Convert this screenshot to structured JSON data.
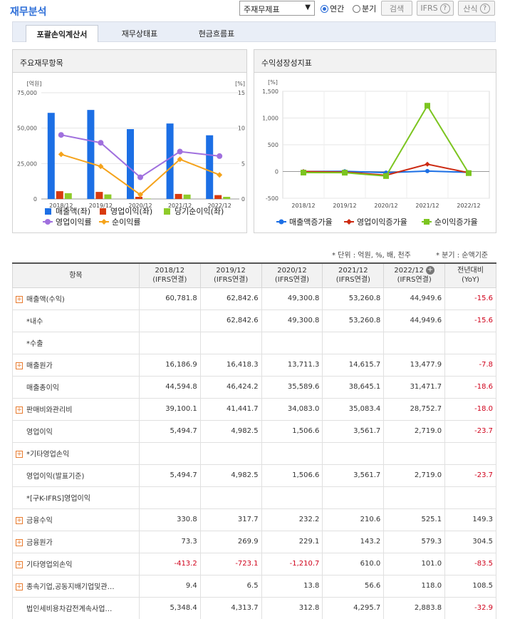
{
  "header": {
    "title": "재무분석",
    "select_value": "주재무제표",
    "radio_annual": "연간",
    "radio_quarter": "분기",
    "search_label": "검색",
    "ifrs_label": "IFRS",
    "formula_label": "산식"
  },
  "tabs": [
    "포괄손익계산서",
    "재무상태표",
    "현금흐름표"
  ],
  "panel_left_title": "주요재무항목",
  "panel_right_title": "수익성장성지표",
  "chart_data": [
    {
      "type": "bar",
      "categories": [
        "2018/12",
        "2019/12",
        "2020/12",
        "2021/12",
        "2022/12"
      ],
      "y_left_unit": "[억원]",
      "y_right_unit": "[%]",
      "y_left_ticks": [
        "75,000",
        "50,000",
        "25,000",
        "0"
      ],
      "y_right_ticks": [
        "15",
        "10",
        "5",
        "0"
      ],
      "ylim_left": [
        0,
        75000
      ],
      "ylim_right": [
        0,
        15
      ],
      "series": [
        {
          "name": "매출액(좌)",
          "kind": "bar",
          "axis": "left",
          "color": "#1c6fe5",
          "values": [
            60781.8,
            62842.6,
            49300.8,
            53260.8,
            44949.6
          ]
        },
        {
          "name": "영업이익(좌)",
          "kind": "bar",
          "axis": "left",
          "color": "#d83a0e",
          "values": [
            5494.7,
            4982.5,
            1506.6,
            3561.7,
            2719.0
          ]
        },
        {
          "name": "당기순이익(좌)",
          "kind": "bar",
          "axis": "left",
          "color": "#8ecb2a",
          "values": [
            4090,
            3200,
            300,
            3100,
            1500
          ]
        },
        {
          "name": "영업이익률",
          "kind": "line",
          "axis": "right",
          "color": "#a070de",
          "values": [
            9.04,
            7.93,
            3.06,
            6.69,
            6.05
          ]
        },
        {
          "name": "순이익률",
          "kind": "line",
          "axis": "right",
          "color": "#f5a31b",
          "values": [
            6.3,
            4.6,
            0.6,
            5.6,
            3.4
          ]
        }
      ]
    },
    {
      "type": "line",
      "categories": [
        "2018/12",
        "2019/12",
        "2020/12",
        "2021/12",
        "2022/12"
      ],
      "y_unit": "[%]",
      "y_ticks": [
        "1,500",
        "1,000",
        "500",
        "0",
        "-500"
      ],
      "ylim": [
        -500,
        1500
      ],
      "series": [
        {
          "name": "매출액증가율",
          "color": "#1c6fe5",
          "values": [
            0,
            3.4,
            -21.5,
            8.0,
            -15.6
          ]
        },
        {
          "name": "영업이익증가율",
          "color": "#cc2a12",
          "values": [
            0,
            -9.3,
            -69.8,
            136.4,
            -23.7
          ]
        },
        {
          "name": "순이익증가율",
          "color": "#7cc520",
          "values": [
            -20,
            -22,
            -85,
            1230,
            -30
          ]
        }
      ]
    }
  ],
  "notes": {
    "unit": "* 단위 : 억원, %, 배, 천주",
    "quarter": "* 분기 : 순액기준"
  },
  "table": {
    "headers": [
      {
        "line1": "항목",
        "line2": ""
      },
      {
        "line1": "2018/12",
        "line2": "(IFRS연결)"
      },
      {
        "line1": "2019/12",
        "line2": "(IFRS연결)"
      },
      {
        "line1": "2020/12",
        "line2": "(IFRS연결)"
      },
      {
        "line1": "2021/12",
        "line2": "(IFRS연결)"
      },
      {
        "line1": "2022/12",
        "line2": "(IFRS연결)"
      },
      {
        "line1": "전년대비",
        "line2": "(YoY)"
      }
    ],
    "rows": [
      {
        "label": "매출액(수익)",
        "expand": true,
        "cells": [
          "60,781.8",
          "62,842.6",
          "49,300.8",
          "53,260.8",
          "44,949.6",
          "-15.6"
        ]
      },
      {
        "label": "*내수",
        "expand": false,
        "cells": [
          "",
          "62,842.6",
          "49,300.8",
          "53,260.8",
          "44,949.6",
          "-15.6"
        ]
      },
      {
        "label": "*수출",
        "expand": false,
        "cells": [
          "",
          "",
          "",
          "",
          "",
          ""
        ]
      },
      {
        "label": "매출원가",
        "expand": true,
        "cells": [
          "16,186.9",
          "16,418.3",
          "13,711.3",
          "14,615.7",
          "13,477.9",
          "-7.8"
        ]
      },
      {
        "label": "매출총이익",
        "expand": false,
        "cells": [
          "44,594.8",
          "46,424.2",
          "35,589.6",
          "38,645.1",
          "31,471.7",
          "-18.6"
        ]
      },
      {
        "label": "판매비와관리비",
        "expand": true,
        "cells": [
          "39,100.1",
          "41,441.7",
          "34,083.0",
          "35,083.4",
          "28,752.7",
          "-18.0"
        ]
      },
      {
        "label": "영업이익",
        "expand": false,
        "cells": [
          "5,494.7",
          "4,982.5",
          "1,506.6",
          "3,561.7",
          "2,719.0",
          "-23.7"
        ]
      },
      {
        "label": "*기타영업손익",
        "expand": true,
        "cells": [
          "",
          "",
          "",
          "",
          "",
          ""
        ]
      },
      {
        "label": "영업이익(발표기준)",
        "expand": false,
        "cells": [
          "5,494.7",
          "4,982.5",
          "1,506.6",
          "3,561.7",
          "2,719.0",
          "-23.7"
        ]
      },
      {
        "label": "*[구K-IFRS]영업이익",
        "expand": false,
        "cells": [
          "",
          "",
          "",
          "",
          "",
          ""
        ]
      },
      {
        "label": "금융수익",
        "expand": true,
        "cells": [
          "330.8",
          "317.7",
          "232.2",
          "210.6",
          "525.1",
          "149.3"
        ]
      },
      {
        "label": "금융원가",
        "expand": true,
        "cells": [
          "73.3",
          "269.9",
          "229.1",
          "143.2",
          "579.3",
          "304.5"
        ]
      },
      {
        "label": "기타영업외손익",
        "expand": true,
        "cells": [
          "-413.2",
          "-723.1",
          "-1,210.7",
          "610.0",
          "101.0",
          "-83.5"
        ]
      },
      {
        "label": "종속기업,공동지배기업및관…",
        "expand": true,
        "cells": [
          "9.4",
          "6.5",
          "13.8",
          "56.6",
          "118.0",
          "108.5"
        ]
      },
      {
        "label": "법인세비용차감전계속사업…",
        "expand": false,
        "cells": [
          "5,348.4",
          "4,313.7",
          "312.8",
          "4,295.7",
          "2,883.8",
          "-32.9"
        ]
      }
    ]
  }
}
